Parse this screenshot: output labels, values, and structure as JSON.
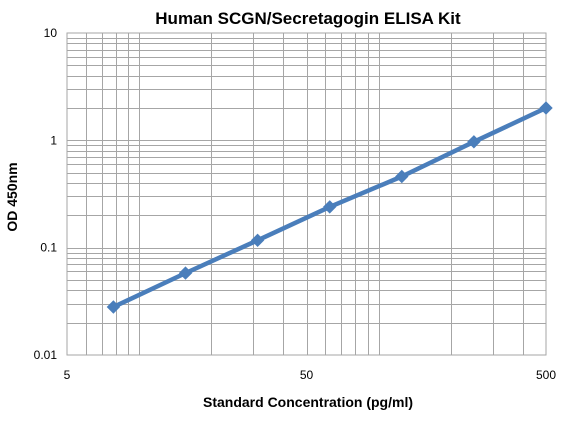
{
  "chart_data": {
    "type": "line",
    "title": "Human SCGN/Secretagogin ELISA Kit",
    "xlabel": "Standard Concentration (pg/ml)",
    "ylabel": "OD 450nm",
    "x_scale": "log",
    "y_scale": "log",
    "xlim": [
      5,
      500
    ],
    "ylim": [
      0.01,
      10
    ],
    "x_ticks": [
      {
        "value": 5,
        "label": "5"
      },
      {
        "value": 50,
        "label": "50"
      },
      {
        "value": 500,
        "label": "500"
      }
    ],
    "y_ticks": [
      {
        "value": 10,
        "label": "10"
      },
      {
        "value": 1,
        "label": "1"
      },
      {
        "value": 0.1,
        "label": "0.1"
      },
      {
        "value": 0.01,
        "label": "0.01"
      }
    ],
    "grid": true,
    "legend": "none",
    "series": [
      {
        "color": "#4a7ebb",
        "x": [
          7.81,
          15.63,
          31.25,
          62.5,
          125,
          250,
          500
        ],
        "y": [
          0.028,
          0.058,
          0.117,
          0.24,
          0.46,
          0.97,
          2.0
        ]
      }
    ]
  }
}
